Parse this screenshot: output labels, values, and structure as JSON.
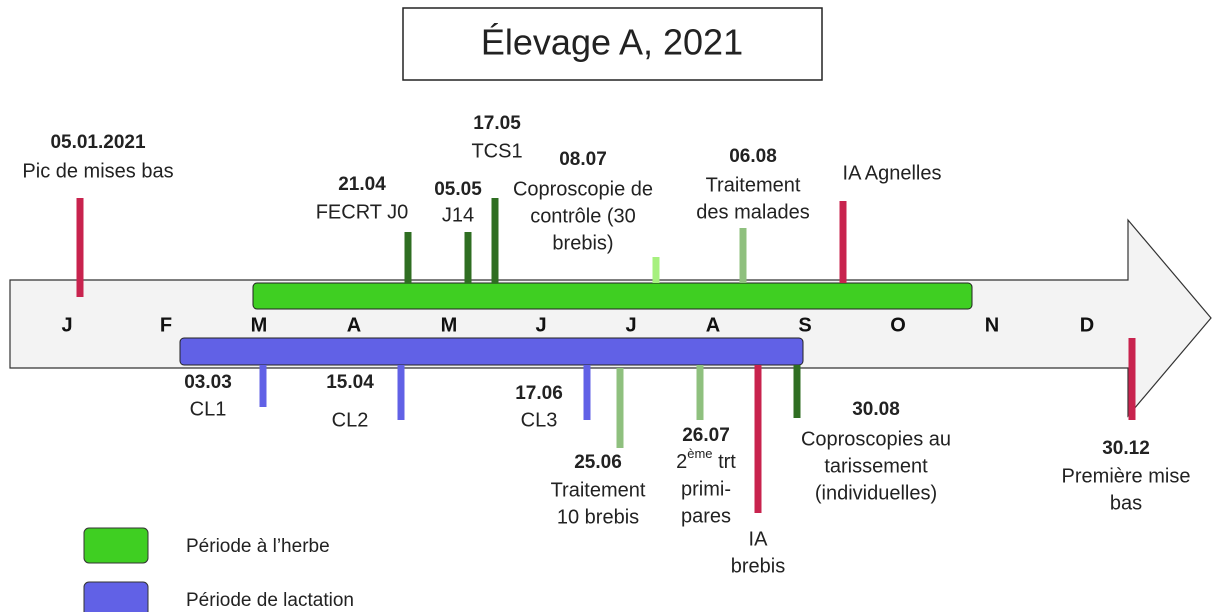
{
  "title": "Élevage A, 2021",
  "months": [
    "J",
    "F",
    "M",
    "A",
    "M",
    "J",
    "J",
    "A",
    "S",
    "O",
    "N",
    "D"
  ],
  "events_above": [
    {
      "date": "05.01.2021",
      "lines": [
        "Pic de mises bas"
      ]
    },
    {
      "date": "21.04",
      "lines": [
        "FECRT J0"
      ]
    },
    {
      "date": "05.05",
      "lines": [
        "J14"
      ]
    },
    {
      "date": "17.05",
      "lines": [
        "TCS1"
      ]
    },
    {
      "date": "08.07",
      "lines": [
        "Coproscopie de",
        "contrôle (30",
        "brebis)"
      ]
    },
    {
      "date": "06.08",
      "lines": [
        "Traitement",
        "des malades"
      ]
    },
    {
      "lines": [
        "IA Agnelles"
      ]
    }
  ],
  "events_below": [
    {
      "date": "03.03",
      "lines": [
        "CL1"
      ]
    },
    {
      "date": "15.04",
      "lines": [
        "CL2"
      ]
    },
    {
      "date": "17.06",
      "lines": [
        "CL3"
      ]
    },
    {
      "date": "25.06",
      "lines": [
        "Traitement",
        "10 brebis"
      ]
    },
    {
      "date": "26.07",
      "lines": [
        [
          "2",
          "ème",
          " trt"
        ],
        "primi-",
        "pares"
      ]
    },
    {
      "lines": [
        "IA",
        "brebis"
      ]
    },
    {
      "date": "30.08",
      "lines": [
        "Coproscopies au",
        "tarissement",
        "(individuelles)"
      ]
    },
    {
      "date": "30.12",
      "lines": [
        "Première mise",
        "bas"
      ]
    }
  ],
  "legend": [
    {
      "label": "Période à l’herbe",
      "color": "#3fcf22"
    },
    {
      "label": "Période de lactation",
      "color": "#6161e6"
    }
  ]
}
